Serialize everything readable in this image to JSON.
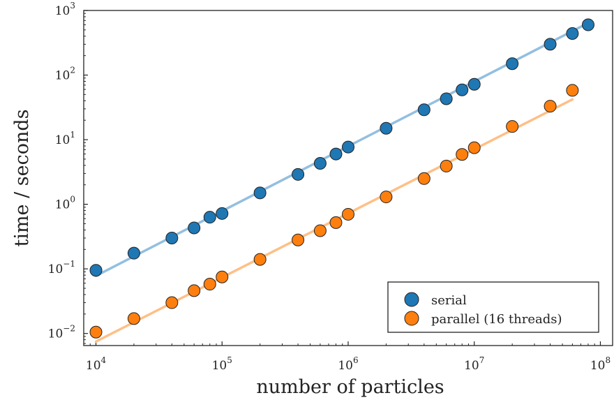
{
  "chart_data": {
    "type": "scatter",
    "xlabel": "number of particles",
    "ylabel": "time / seconds",
    "xscale": "log",
    "yscale": "log",
    "xlim": [
      8000,
      125000000
    ],
    "ylim": [
      0.0065,
      1000
    ],
    "x_ticks": [
      {
        "base": "10",
        "exp": "4",
        "value": 10000
      },
      {
        "base": "10",
        "exp": "5",
        "value": 100000
      },
      {
        "base": "10",
        "exp": "6",
        "value": 1000000
      },
      {
        "base": "10",
        "exp": "7",
        "value": 10000000
      },
      {
        "base": "10",
        "exp": "8",
        "value": 100000000
      }
    ],
    "y_ticks": [
      {
        "base": "10",
        "exp": "−2",
        "value": 0.01
      },
      {
        "base": "10",
        "exp": "−1",
        "value": 0.1
      },
      {
        "base": "10",
        "exp": "0",
        "value": 1
      },
      {
        "base": "10",
        "exp": "1",
        "value": 10
      },
      {
        "base": "10",
        "exp": "2",
        "value": 100
      },
      {
        "base": "10",
        "exp": "3",
        "value": 1000
      }
    ],
    "legend_position": "bottom-right",
    "grid": false,
    "series": [
      {
        "name": "serial",
        "marker_color": "#1f77b4",
        "fit_color": "#93bfe0",
        "points": [
          [
            10000,
            0.095
          ],
          [
            20000,
            0.175
          ],
          [
            40000,
            0.3
          ],
          [
            60000,
            0.43
          ],
          [
            80000,
            0.63
          ],
          [
            100000,
            0.72
          ],
          [
            200000,
            1.5
          ],
          [
            400000,
            2.9
          ],
          [
            600000,
            4.3
          ],
          [
            800000,
            6.0
          ],
          [
            1000000,
            7.7
          ],
          [
            2000000,
            15
          ],
          [
            4000000,
            29
          ],
          [
            6000000,
            43
          ],
          [
            8000000,
            59
          ],
          [
            10000000,
            72
          ],
          [
            20000000,
            150
          ],
          [
            40000000,
            300
          ],
          [
            60000000,
            440
          ],
          [
            80000000,
            600
          ]
        ],
        "fit": [
          [
            10000,
            0.078
          ],
          [
            80000000,
            640
          ]
        ]
      },
      {
        "name": "parallel (16 threads)",
        "marker_color": "#ff7f0e",
        "fit_color": "#ffbf86",
        "points": [
          [
            10000,
            0.0105
          ],
          [
            20000,
            0.017
          ],
          [
            40000,
            0.03
          ],
          [
            60000,
            0.046
          ],
          [
            80000,
            0.058
          ],
          [
            100000,
            0.075
          ],
          [
            200000,
            0.14
          ],
          [
            400000,
            0.28
          ],
          [
            600000,
            0.39
          ],
          [
            800000,
            0.52
          ],
          [
            1000000,
            0.7
          ],
          [
            2000000,
            1.3
          ],
          [
            4000000,
            2.5
          ],
          [
            6000000,
            3.9
          ],
          [
            8000000,
            5.9
          ],
          [
            10000000,
            7.5
          ],
          [
            20000000,
            16
          ],
          [
            40000000,
            33
          ],
          [
            60000000,
            58
          ]
        ],
        "fit": [
          [
            10000,
            0.0075
          ],
          [
            60000000,
            42
          ]
        ]
      }
    ]
  }
}
